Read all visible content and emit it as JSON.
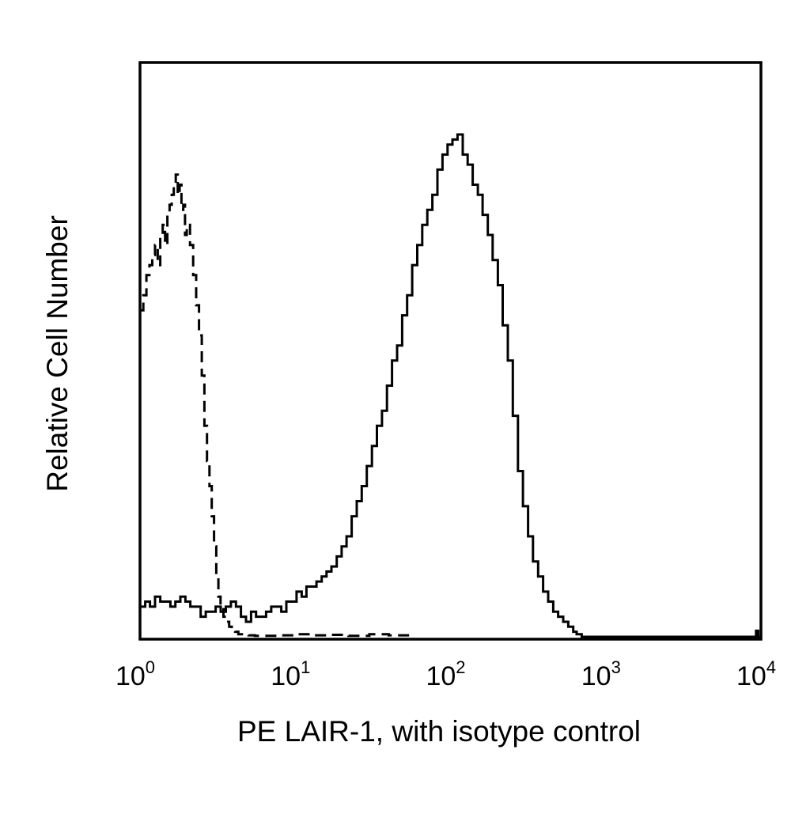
{
  "chart_data": {
    "type": "line",
    "title": "",
    "xlabel": "PE LAIR-1, with isotype control",
    "ylabel": "Relative Cell Number",
    "x_scale": "log",
    "xlim": [
      1,
      10000
    ],
    "ylim": [
      0,
      100
    ],
    "x_ticks": [
      {
        "base": "10",
        "exp": "0"
      },
      {
        "base": "10",
        "exp": "1"
      },
      {
        "base": "10",
        "exp": "2"
      },
      {
        "base": "10",
        "exp": "3"
      },
      {
        "base": "10",
        "exp": "4"
      }
    ],
    "y_ticks": [],
    "grid": false,
    "legend": "none",
    "series": [
      {
        "style": "solid",
        "color": "#000000",
        "x": [
          1.0,
          1.08,
          1.16,
          1.25,
          1.35,
          1.45,
          1.57,
          1.69,
          1.82,
          1.96,
          2.11,
          2.28,
          2.46,
          2.65,
          2.85,
          3.07,
          3.31,
          3.57,
          3.85,
          4.15,
          4.47,
          4.82,
          5.19,
          5.59,
          6.03,
          6.49,
          7.0,
          7.54,
          8.13,
          8.76,
          9.44,
          10.2,
          11.0,
          11.8,
          12.7,
          13.7,
          14.8,
          15.9,
          17.1,
          18.5,
          19.9,
          21.4,
          23.1,
          24.9,
          26.8,
          28.9,
          31.2,
          33.6,
          36.2,
          39.0,
          42.0,
          45.3,
          48.8,
          52.6,
          56.7,
          61.1,
          65.8,
          70.9,
          76.4,
          82.4,
          88.8,
          95.7,
          103,
          111,
          120,
          129,
          139,
          150,
          161,
          174,
          187,
          202,
          217,
          234,
          252,
          272,
          293,
          316,
          340,
          367,
          395,
          426,
          459,
          494,
          532,
          574,
          618,
          650,
          700,
          1000,
          3000,
          9000,
          9300,
          9600,
          10000
        ],
        "values": [
          6,
          7,
          6,
          8,
          7,
          7,
          6,
          7,
          8,
          7,
          6,
          6,
          4,
          5,
          5,
          6,
          5,
          6,
          7,
          6,
          4,
          3,
          5,
          4,
          4,
          5,
          6,
          6,
          5,
          7,
          7,
          9,
          8,
          10,
          10,
          11,
          12,
          13,
          14,
          16,
          18,
          20,
          24,
          27,
          30,
          34,
          38,
          42,
          45,
          50,
          55,
          58,
          64,
          68,
          74,
          78,
          82,
          85,
          88,
          93,
          96,
          98,
          99,
          100,
          96,
          94,
          90,
          88,
          84,
          80,
          75,
          70,
          62,
          55,
          44,
          33,
          26,
          20,
          15,
          12,
          9,
          7,
          5,
          4,
          3,
          2,
          1,
          0.5,
          0,
          0,
          0,
          0,
          1.2,
          0,
          0
        ]
      },
      {
        "style": "dashed",
        "color": "#000000",
        "x": [
          1.0,
          1.05,
          1.1,
          1.15,
          1.2,
          1.25,
          1.3,
          1.35,
          1.4,
          1.45,
          1.5,
          1.55,
          1.6,
          1.65,
          1.7,
          1.75,
          1.8,
          1.85,
          1.9,
          1.95,
          2.0,
          2.1,
          2.2,
          2.3,
          2.4,
          2.5,
          2.6,
          2.7,
          2.8,
          2.9,
          3.0,
          3.1,
          3.2,
          3.3,
          3.45,
          3.6,
          3.75,
          3.9,
          4.1,
          4.3,
          4.6,
          5.0,
          5.5,
          6.5,
          8.0,
          10.0,
          13.0,
          17.0,
          22.0,
          30.0,
          40.0,
          55.0
        ],
        "values": [
          65,
          68,
          72,
          74,
          76,
          78,
          74,
          80,
          82,
          78,
          84,
          86,
          88,
          90,
          92,
          88,
          90,
          85,
          86,
          80,
          82,
          78,
          72,
          66,
          60,
          52,
          42,
          35,
          30,
          24,
          18,
          12,
          8,
          6,
          4,
          3,
          2,
          1.5,
          1,
          0.5,
          0.5,
          0.3,
          0.2,
          0.2,
          0.3,
          0.5,
          0.3,
          0.4,
          0.2,
          0.5,
          0.3,
          0
        ]
      }
    ]
  }
}
